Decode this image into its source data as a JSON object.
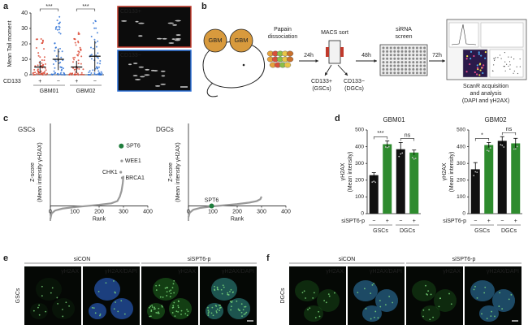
{
  "panel_a": {
    "label": "a",
    "y_label": "Mean Tail moment",
    "ylim": [
      0,
      40
    ],
    "yticks": [
      0,
      10,
      20,
      30,
      40
    ],
    "row_label": "CD133",
    "signs": [
      "+",
      "−",
      "+",
      "−"
    ],
    "groups": [
      "GBM01",
      "GBM02"
    ],
    "significance": [
      "***",
      "***"
    ],
    "means": [
      5,
      10,
      5,
      12
    ],
    "errors": [
      4,
      7,
      4,
      10
    ],
    "image_labels": [
      "CD133+",
      "CD133−"
    ]
  },
  "panel_b": {
    "label": "b",
    "tumor_labels": [
      "GBM",
      "GBM"
    ],
    "steps": [
      "Papain",
      "dissociation",
      "MACS sort",
      "siRNA",
      "screen"
    ],
    "times": [
      "24h",
      "48h",
      "72h"
    ],
    "fractions": [
      "CD133+",
      "(GSCs)",
      "CD133−",
      "(DGCs)"
    ],
    "readout": [
      "ScanR acquisition",
      "and analysis",
      "(DAPI and γH2AX)"
    ]
  },
  "panel_c": {
    "label": "c",
    "plots": [
      {
        "title": "GSCs",
        "y_label": [
          "Z-score",
          "(Mean intensity γH2AX)"
        ],
        "x_label": "Rank",
        "xlim": [
          0,
          400
        ],
        "xticks": [
          0,
          100,
          200,
          300,
          400
        ],
        "ylim": [
          -4,
          22
        ],
        "x": [
          0,
          5,
          20,
          50,
          100,
          150,
          200,
          250,
          275,
          285,
          292,
          297,
          300
        ],
        "y": [
          -3.5,
          -2,
          -1.2,
          -0.7,
          -0.3,
          0,
          0.3,
          0.7,
          1.3,
          2.5,
          4,
          6,
          8
        ],
        "hits": [
          {
            "name": "SPT6",
            "x": 291,
            "y": 16,
            "color": "#1e7d3c"
          },
          {
            "name": "WEE1",
            "x": 293,
            "y": 12,
            "color": "#999999"
          },
          {
            "name": "CHK1",
            "x": 289,
            "y": 9,
            "color": "#999999"
          },
          {
            "name": "BRCA1",
            "x": 295,
            "y": 7.5,
            "color": "#999999"
          }
        ]
      },
      {
        "title": "DGCs",
        "y_label": [
          "Z-score",
          "(Mean intensity γH2AX)"
        ],
        "x_label": "Rank",
        "xlim": [
          0,
          400
        ],
        "xticks": [
          0,
          100,
          200,
          300,
          400
        ],
        "ylim": [
          -4,
          22
        ],
        "x": [
          0,
          5,
          20,
          50,
          100,
          150,
          200,
          250,
          280,
          295,
          300
        ],
        "y": [
          -3,
          -1.8,
          -1,
          -0.5,
          -0.1,
          0.2,
          0.5,
          0.9,
          1.3,
          1.8,
          2.5
        ],
        "hits": [
          {
            "name": "SPT6",
            "x": 95,
            "y": 0,
            "color": "#1e7d3c"
          }
        ]
      }
    ]
  },
  "panel_d": {
    "label": "d",
    "row_label": "siSPT6-p",
    "signs": [
      "−",
      "+",
      "−",
      "+"
    ],
    "groups": [
      "GSCs",
      "DGCs"
    ],
    "plots": [
      {
        "title": "GBM01",
        "y_label": [
          "γH2AX",
          "(Mean intensity)"
        ],
        "ylim": [
          0,
          500
        ],
        "yticks": [
          0,
          100,
          200,
          300,
          400,
          500
        ],
        "values": [
          230,
          415,
          385,
          365
        ],
        "errors": [
          15,
          20,
          40,
          15
        ],
        "colors": [
          "#111111",
          "#2e8b2e",
          "#111111",
          "#2e8b2e"
        ],
        "significance": [
          "***",
          "ns"
        ]
      },
      {
        "title": "GBM02",
        "y_label": [
          "γH2AX",
          "(Mean intensity)"
        ],
        "ylim": [
          0,
          500
        ],
        "yticks": [
          0,
          100,
          200,
          300,
          400,
          500
        ],
        "values": [
          265,
          410,
          435,
          420
        ],
        "errors": [
          40,
          15,
          25,
          30
        ],
        "colors": [
          "#111111",
          "#2e8b2e",
          "#111111",
          "#2e8b2e"
        ],
        "significance": [
          "*",
          "ns"
        ]
      }
    ]
  },
  "panel_e": {
    "label": "e",
    "conditions": [
      "siCON",
      "siSPT6-p"
    ],
    "channels": [
      "γH2AX",
      "γH2AX/DAPI"
    ],
    "row_label": "GSCs"
  },
  "panel_f": {
    "label": "f",
    "conditions": [
      "siCON",
      "siSPT6-p"
    ],
    "channels": [
      "γH2AX",
      "γH2AX/DAPI"
    ],
    "row_label": "DGCs"
  }
}
